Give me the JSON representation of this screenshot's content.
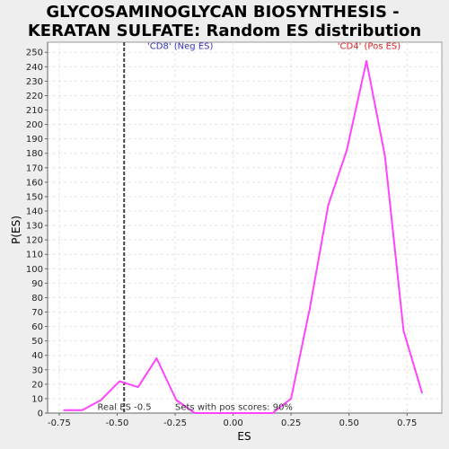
{
  "chart_data": {
    "type": "line",
    "title_lines": [
      "GLYCOSAMINOGLYCAN BIOSYNTHESIS -",
      "KERATAN SULFATE: Random ES distribution"
    ],
    "xlabel": "ES",
    "ylabel": "P(ES)",
    "xlim": [
      -0.8,
      0.9
    ],
    "ylim": [
      0,
      257
    ],
    "x_ticks": [
      -0.75,
      -0.5,
      -0.25,
      0.0,
      0.25,
      0.5,
      0.75
    ],
    "x_tick_labels": [
      "-0.75",
      "-0.50",
      "-0.25",
      "0.00",
      "0.25",
      "0.50",
      "0.75"
    ],
    "y_ticks": [
      0,
      10,
      20,
      30,
      40,
      50,
      60,
      70,
      80,
      90,
      100,
      110,
      120,
      130,
      140,
      150,
      160,
      170,
      180,
      190,
      200,
      210,
      220,
      230,
      240,
      250
    ],
    "grid": true,
    "series": [
      {
        "color": "#ff44ff",
        "x": [
          -0.73,
          -0.65,
          -0.57,
          -0.49,
          -0.41,
          -0.33,
          -0.245,
          -0.165,
          -0.085,
          0.0,
          0.09,
          0.17,
          0.25,
          0.33,
          0.41,
          0.49,
          0.575,
          0.655,
          0.735,
          0.815
        ],
        "y": [
          2,
          2,
          9,
          22,
          18,
          38,
          9,
          0,
          0,
          0,
          0,
          0,
          10,
          72,
          144,
          182,
          244,
          178,
          57,
          14
        ]
      }
    ],
    "real_es_line": {
      "x": -0.47,
      "color": "#444444"
    },
    "annotations": [
      {
        "text": "'CD8' (Neg ES)",
        "color": "#3333bb",
        "x": -0.37,
        "y": 251
      },
      {
        "text": "'CD4' (Pos ES)",
        "color": "#dd2222",
        "x": 0.45,
        "y": 251
      },
      {
        "text": "Real ES -0.5",
        "color": "#333333",
        "x": -0.585,
        "y": 1
      },
      {
        "text": "Sets with pos scores: 90%",
        "color": "#333333",
        "x": -0.25,
        "y": 1
      }
    ]
  }
}
